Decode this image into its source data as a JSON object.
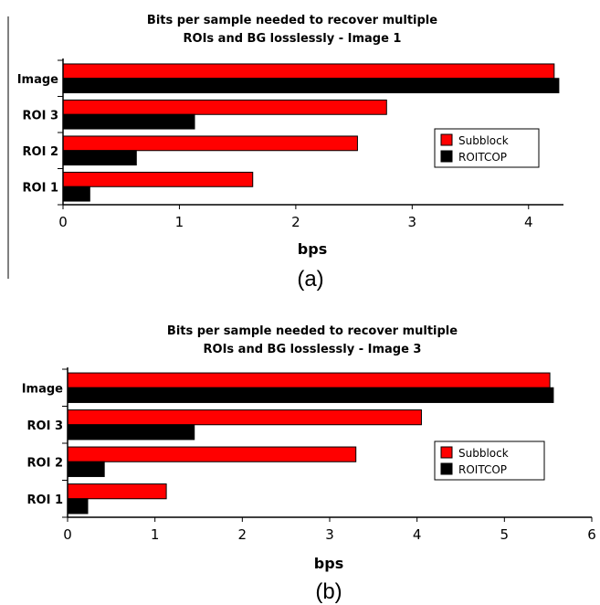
{
  "colors": {
    "subblock": "#ff0000",
    "roitcop": "#000000"
  },
  "chart_data": [
    {
      "type": "bar",
      "orientation": "horizontal",
      "title": "Bits per sample needed to recover multiple ROIs and BG losslessly - Image 1",
      "title_lines": [
        "Bits per sample needed to recover multiple",
        "ROIs and BG losslessly - Image 1"
      ],
      "categories": [
        "Image",
        "ROI 3",
        "ROI 2",
        "ROI 1"
      ],
      "series": [
        {
          "name": "Subblock",
          "values": [
            4.22,
            2.78,
            2.53,
            1.63
          ]
        },
        {
          "name": "ROITCOP",
          "values": [
            4.26,
            1.13,
            0.63,
            0.23
          ]
        }
      ],
      "xlabel": "bps",
      "xlim": [
        0,
        4.3
      ],
      "xticks": [
        "0",
        "1",
        "2",
        "3",
        "4"
      ],
      "legend": "right",
      "grid": false,
      "panel_label": "(a)"
    },
    {
      "type": "bar",
      "orientation": "horizontal",
      "title": "Bits per sample needed to recover multiple ROIs and BG losslessly - Image 3",
      "title_lines": [
        "Bits per sample needed to recover multiple",
        "ROIs and BG losslessly - Image 3"
      ],
      "categories": [
        "Image",
        "ROI 3",
        "ROI 2",
        "ROI 1"
      ],
      "series": [
        {
          "name": "Subblock",
          "values": [
            5.52,
            4.05,
            3.3,
            1.13
          ]
        },
        {
          "name": "ROITCOP",
          "values": [
            5.56,
            1.45,
            0.42,
            0.23
          ]
        }
      ],
      "xlabel": "bps",
      "xlim": [
        0,
        6
      ],
      "xticks": [
        "0",
        "1",
        "2",
        "3",
        "4",
        "5",
        "6"
      ],
      "legend": "right",
      "grid": false,
      "panel_label": "(b)"
    }
  ]
}
